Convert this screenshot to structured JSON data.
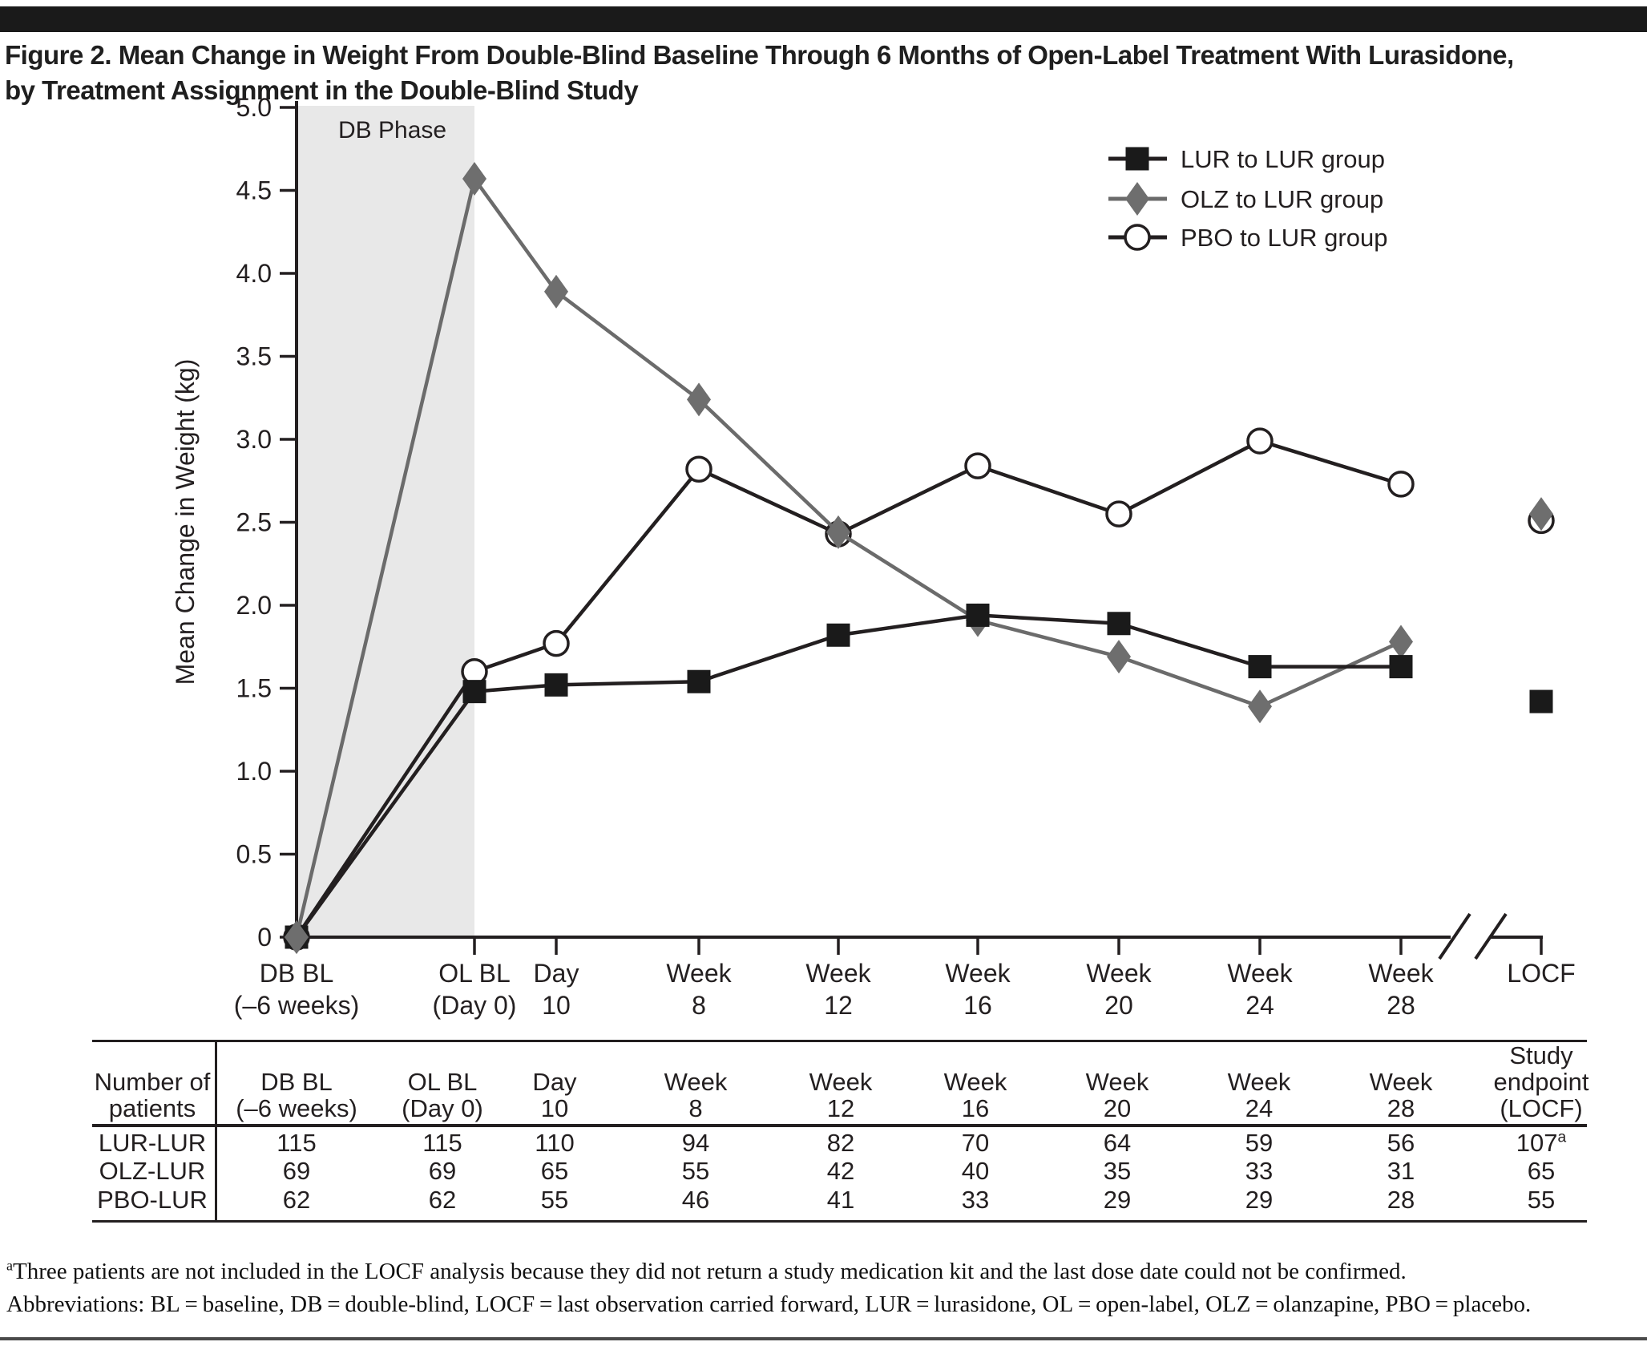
{
  "figure": {
    "title_line1": "Figure 2. Mean Change in Weight From Double-Blind Baseline Through 6 Months of Open-Label Treatment With Lurasidone,",
    "title_line2": "by Treatment Assignment in the Double-Blind Study"
  },
  "chart_data": {
    "type": "line",
    "ylabel": "Mean Change in Weight (kg)",
    "ylim": [
      0,
      5.0
    ],
    "yticks": [
      0,
      0.5,
      1.0,
      1.5,
      2.0,
      2.5,
      3.0,
      3.5,
      4.0,
      4.5,
      5.0
    ],
    "ytick_labels": [
      "0",
      "0.5",
      "1.0",
      "1.5",
      "2.0",
      "2.5",
      "3.0",
      "3.5",
      "4.0",
      "4.5",
      "5.0"
    ],
    "phase_label": "DB Phase",
    "phase_region": {
      "from_category": 0,
      "to_category": 1
    },
    "axis_break_before_last_category": true,
    "grid": false,
    "legend_position": "top-right",
    "categories": [
      [
        "DB BL",
        "(–6 weeks)"
      ],
      [
        "OL BL",
        "(Day 0)"
      ],
      [
        "Day",
        "10"
      ],
      [
        "Week",
        "8"
      ],
      [
        "Week",
        "12"
      ],
      [
        "Week",
        "16"
      ],
      [
        "Week",
        "20"
      ],
      [
        "Week",
        "24"
      ],
      [
        "Week",
        "28"
      ],
      [
        "LOCF"
      ]
    ],
    "series": [
      {
        "name": "PBO to LUR group",
        "marker": "circle",
        "line_color": "#231f20",
        "marker_color": "#ffffff",
        "values": [
          0,
          1.6,
          1.77,
          2.82,
          2.43,
          2.84,
          2.55,
          2.99,
          2.73,
          2.51
        ]
      },
      {
        "name": "OLZ to LUR group",
        "marker": "diamond",
        "line_color": "#6b6b6b",
        "marker_color": "#6e6e6e",
        "values": [
          0,
          4.57,
          3.89,
          3.24,
          2.44,
          1.91,
          1.69,
          1.39,
          1.78,
          2.55
        ]
      },
      {
        "name": "LUR to LUR group",
        "marker": "square",
        "line_color": "#231f20",
        "marker_color": "#1a1a1a",
        "values": [
          0,
          1.48,
          1.52,
          1.54,
          1.82,
          1.94,
          1.89,
          1.63,
          1.63,
          1.42
        ]
      }
    ],
    "legend_order": [
      "LUR to LUR group",
      "OLZ to LUR group",
      "PBO to LUR group"
    ]
  },
  "table": {
    "row_header": [
      "Number of",
      "patients"
    ],
    "col_headers": [
      [
        "DB BL",
        "(–6 weeks)"
      ],
      [
        "OL BL",
        "(Day 0)"
      ],
      [
        "Day",
        "10"
      ],
      [
        "Week",
        "8"
      ],
      [
        "Week",
        "12"
      ],
      [
        "Week",
        "16"
      ],
      [
        "Week",
        "20"
      ],
      [
        "Week",
        "24"
      ],
      [
        "Week",
        "28"
      ],
      [
        "Study",
        "endpoint",
        "(LOCF)"
      ]
    ],
    "rows": [
      {
        "label": "LUR-LUR",
        "values": [
          "115",
          "115",
          "110",
          "94",
          "82",
          "70",
          "64",
          "59",
          "56",
          "107^a"
        ]
      },
      {
        "label": "OLZ-LUR",
        "values": [
          "69",
          "69",
          "65",
          "55",
          "42",
          "40",
          "35",
          "33",
          "31",
          "65"
        ]
      },
      {
        "label": "PBO-LUR",
        "values": [
          "62",
          "62",
          "55",
          "46",
          "41",
          "33",
          "29",
          "29",
          "28",
          "55"
        ]
      }
    ]
  },
  "footnotes": {
    "note_marker": "a",
    "note_text": "Three patients are not included in the LOCF analysis because they did not return a study medication kit and the last dose date could not be confirmed.",
    "abbreviations": "Abbreviations: BL = baseline, DB = double-blind, LOCF = last observation carried forward, LUR = lurasidone, OL = open-label, OLZ = olanzapine, PBO = placebo."
  }
}
